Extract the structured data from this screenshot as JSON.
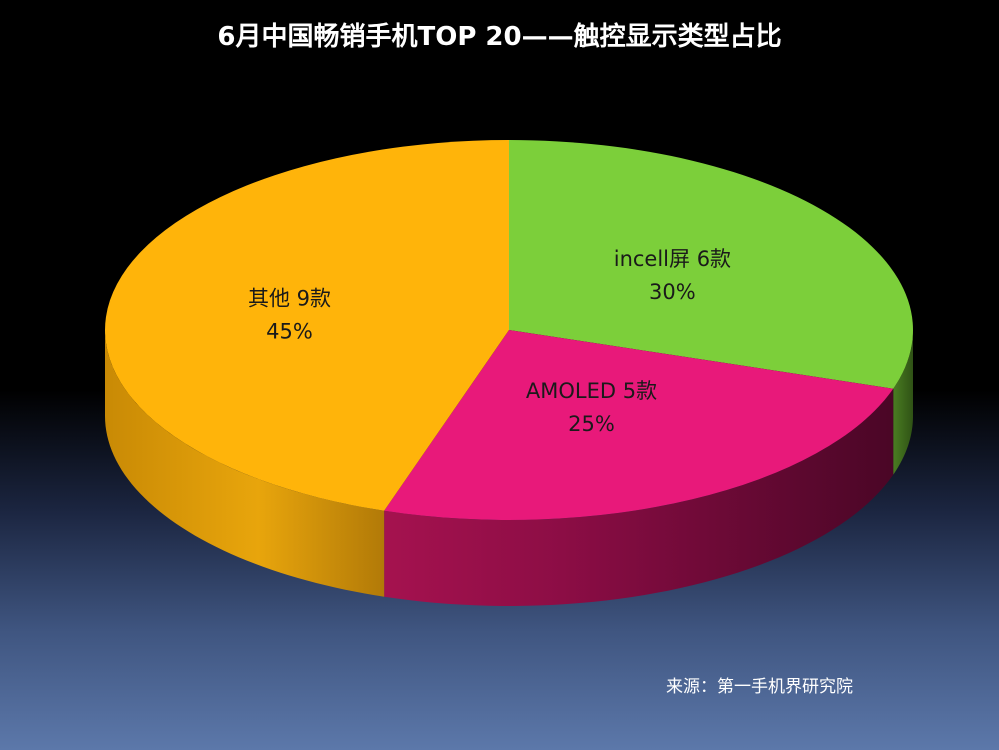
{
  "chart_data": {
    "type": "pie",
    "title": "6月中国畅销手机TOP 20——触控显示类型占比",
    "slices": [
      {
        "name": "incell屏",
        "count_label": "6款",
        "count": 6,
        "percent_label": "30%",
        "value": 30,
        "color": "#7ccf3a"
      },
      {
        "name": "AMOLED",
        "count_label": "5款",
        "count": 5,
        "percent_label": "25%",
        "value": 25,
        "color": "#e8197a"
      },
      {
        "name": "其他",
        "count_label": "9款",
        "count": 9,
        "percent_label": "45%",
        "value": 45,
        "color": "#ffb40a"
      }
    ],
    "legend": "none",
    "style": "3d-exploded-none"
  },
  "footer": {
    "source": "来源：第一手机界研究院"
  }
}
